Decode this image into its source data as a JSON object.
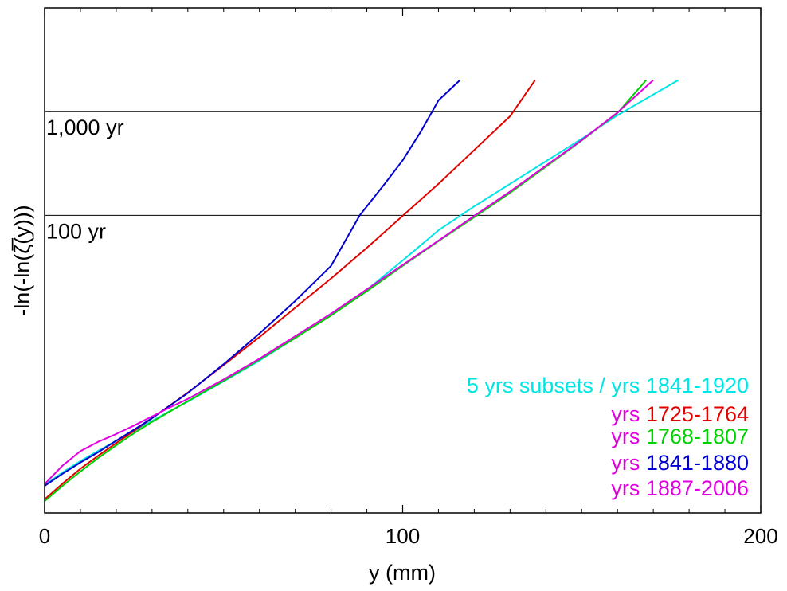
{
  "chart_data": {
    "type": "line",
    "xlabel": "y (mm)",
    "ylabel": "-ln(-ln(ζ̅(y)))",
    "xlim": [
      0,
      200
    ],
    "ylim": [
      -2.0,
      9.2
    ],
    "x_ticks": [
      {
        "value": 0,
        "label": "0"
      },
      {
        "value": 100,
        "label": "100"
      },
      {
        "value": 200,
        "label": "200"
      }
    ],
    "x_minor_ticks": [
      10,
      20,
      30,
      40,
      50,
      60,
      70,
      80,
      90,
      110,
      120,
      130,
      140,
      150,
      160,
      170,
      180,
      190
    ],
    "reference_lines": [
      {
        "label": "1,000 yr",
        "y": 6.907
      },
      {
        "label": "100 yr",
        "y": 4.6
      }
    ],
    "legend": {
      "position": "bottom-right",
      "entries": [
        {
          "prefix": "5 yrs subsets / yrs ",
          "years": "1841-1920",
          "color": "#00e5e5"
        },
        {
          "prefix": "yrs ",
          "years": "1725-1764",
          "color": "#e00000"
        },
        {
          "prefix": "yrs ",
          "years": "1768-1807",
          "color": "#00d000"
        },
        {
          "prefix": "yrs ",
          "years": "1841-1880",
          "color": "#0000d0"
        },
        {
          "prefix": "yrs ",
          "years": "1887-2006",
          "color": "#e000e0"
        }
      ]
    },
    "series": [
      {
        "color": "#00e5e5",
        "points": [
          [
            0,
            -1.38
          ],
          [
            5,
            -1.1
          ],
          [
            10,
            -0.85
          ],
          [
            15,
            -0.62
          ],
          [
            20,
            -0.4
          ],
          [
            25,
            -0.18
          ],
          [
            30,
            0.04
          ],
          [
            35,
            0.26
          ],
          [
            40,
            0.47
          ],
          [
            50,
            0.92
          ],
          [
            60,
            1.38
          ],
          [
            70,
            1.88
          ],
          [
            80,
            2.4
          ],
          [
            90,
            2.95
          ],
          [
            100,
            3.6
          ],
          [
            110,
            4.27
          ],
          [
            120,
            4.8
          ],
          [
            130,
            5.3
          ],
          [
            140,
            5.8
          ],
          [
            150,
            6.3
          ],
          [
            160,
            6.82
          ],
          [
            170,
            7.28
          ],
          [
            177,
            7.6
          ]
        ]
      },
      {
        "color": "#e00000",
        "points": [
          [
            0,
            -1.7
          ],
          [
            5,
            -1.35
          ],
          [
            10,
            -1.02
          ],
          [
            15,
            -0.73
          ],
          [
            20,
            -0.45
          ],
          [
            25,
            -0.18
          ],
          [
            30,
            0.1
          ],
          [
            40,
            0.67
          ],
          [
            50,
            1.28
          ],
          [
            60,
            1.9
          ],
          [
            70,
            2.55
          ],
          [
            80,
            3.2
          ],
          [
            90,
            3.88
          ],
          [
            100,
            4.59
          ],
          [
            110,
            5.3
          ],
          [
            120,
            6.05
          ],
          [
            130,
            6.8
          ],
          [
            137,
            7.6
          ]
        ]
      },
      {
        "color": "#00d000",
        "points": [
          [
            0,
            -1.74
          ],
          [
            5,
            -1.4
          ],
          [
            10,
            -1.08
          ],
          [
            15,
            -0.78
          ],
          [
            20,
            -0.5
          ],
          [
            25,
            -0.23
          ],
          [
            30,
            0.02
          ],
          [
            35,
            0.25
          ],
          [
            40,
            0.48
          ],
          [
            50,
            0.93
          ],
          [
            60,
            1.4
          ],
          [
            70,
            1.88
          ],
          [
            80,
            2.38
          ],
          [
            90,
            2.92
          ],
          [
            100,
            3.48
          ],
          [
            110,
            4.03
          ],
          [
            120,
            4.56
          ],
          [
            130,
            5.1
          ],
          [
            140,
            5.68
          ],
          [
            150,
            6.26
          ],
          [
            160,
            6.87
          ],
          [
            168,
            7.6
          ]
        ]
      },
      {
        "color": "#0000d0",
        "points": [
          [
            0,
            -1.4
          ],
          [
            5,
            -1.13
          ],
          [
            10,
            -0.88
          ],
          [
            15,
            -0.65
          ],
          [
            20,
            -0.4
          ],
          [
            25,
            -0.15
          ],
          [
            30,
            0.1
          ],
          [
            40,
            0.66
          ],
          [
            50,
            1.3
          ],
          [
            60,
            1.98
          ],
          [
            70,
            2.7
          ],
          [
            80,
            3.48
          ],
          [
            88,
            4.6
          ],
          [
            95,
            5.3
          ],
          [
            100,
            5.82
          ],
          [
            105,
            6.45
          ],
          [
            110,
            7.15
          ],
          [
            116,
            7.6
          ]
        ]
      },
      {
        "color": "#e000e0",
        "points": [
          [
            0,
            -1.36
          ],
          [
            5,
            -0.95
          ],
          [
            10,
            -0.63
          ],
          [
            15,
            -0.42
          ],
          [
            20,
            -0.25
          ],
          [
            25,
            -0.06
          ],
          [
            30,
            0.14
          ],
          [
            35,
            0.34
          ],
          [
            40,
            0.53
          ],
          [
            50,
            0.96
          ],
          [
            60,
            1.42
          ],
          [
            70,
            1.92
          ],
          [
            80,
            2.42
          ],
          [
            90,
            2.96
          ],
          [
            100,
            3.5
          ],
          [
            110,
            4.04
          ],
          [
            120,
            4.59
          ],
          [
            130,
            5.13
          ],
          [
            140,
            5.7
          ],
          [
            150,
            6.27
          ],
          [
            160,
            6.88
          ],
          [
            170,
            7.6
          ]
        ]
      }
    ]
  }
}
